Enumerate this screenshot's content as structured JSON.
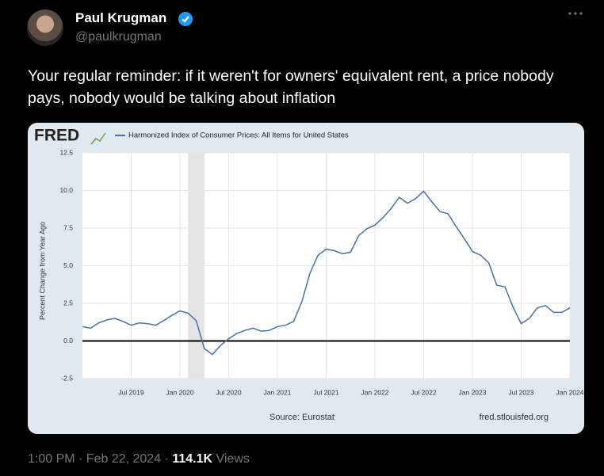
{
  "tweet": {
    "name": "Paul Krugman",
    "handle": "@paulkrugman",
    "text": "Your regular reminder: if it weren't for owners' equivalent rent, a price nobody pays, nobody would be talking about inflation",
    "timestamp": "1:00 PM · Feb 22, 2024",
    "separator": "·",
    "views_count": "114.1K",
    "views_label": "Views"
  },
  "chart_data": {
    "type": "line",
    "logo": "FRED",
    "source": "Source: Eurostat",
    "site": "fred.stlouisfed.org",
    "y_label": "Percent Change from Year Ago",
    "x": [
      "2019-01",
      "2019-02",
      "2019-03",
      "2019-04",
      "2019-05",
      "2019-06",
      "2019-07",
      "2019-08",
      "2019-09",
      "2019-10",
      "2019-11",
      "2019-12",
      "2020-01",
      "2020-02",
      "2020-03",
      "2020-04",
      "2020-05",
      "2020-06",
      "2020-07",
      "2020-08",
      "2020-09",
      "2020-10",
      "2020-11",
      "2020-12",
      "2021-01",
      "2021-02",
      "2021-03",
      "2021-04",
      "2021-05",
      "2021-06",
      "2021-07",
      "2021-08",
      "2021-09",
      "2021-10",
      "2021-11",
      "2021-12",
      "2022-01",
      "2022-02",
      "2022-03",
      "2022-04",
      "2022-05",
      "2022-06",
      "2022-07",
      "2022-08",
      "2022-09",
      "2022-10",
      "2022-11",
      "2022-12",
      "2023-01",
      "2023-02",
      "2023-03",
      "2023-04",
      "2023-05",
      "2023-06",
      "2023-07",
      "2023-08",
      "2023-09",
      "2023-10",
      "2023-11",
      "2023-12",
      "2024-01"
    ],
    "series": [
      {
        "name": "Harmonized Index of Consumer Prices: All Items for United States",
        "color": "#4572a7",
        "values": [
          0.95,
          0.85,
          1.2,
          1.4,
          1.5,
          1.3,
          1.05,
          1.2,
          1.15,
          1.05,
          1.35,
          1.7,
          2.0,
          1.85,
          1.35,
          -0.5,
          -0.9,
          -0.3,
          0.15,
          0.5,
          0.7,
          0.85,
          0.65,
          0.7,
          0.95,
          1.05,
          1.3,
          2.6,
          4.5,
          5.7,
          6.1,
          6.0,
          5.8,
          5.9,
          7.0,
          7.45,
          7.7,
          8.2,
          8.8,
          9.55,
          9.15,
          9.45,
          9.95,
          9.25,
          8.6,
          8.45,
          7.6,
          6.8,
          5.95,
          5.7,
          5.2,
          3.7,
          3.6,
          2.25,
          1.15,
          1.5,
          2.2,
          2.35,
          1.9,
          1.9,
          2.2
        ]
      }
    ],
    "xlim": [
      "2019-01",
      "2024-01"
    ],
    "xticks": [
      {
        "value": "2019-07",
        "label": "Jul 2019"
      },
      {
        "value": "2020-01",
        "label": "Jan 2020"
      },
      {
        "value": "2020-07",
        "label": "Jul 2020"
      },
      {
        "value": "2021-01",
        "label": "Jan 2021"
      },
      {
        "value": "2021-07",
        "label": "Jul 2021"
      },
      {
        "value": "2022-01",
        "label": "Jan 2022"
      },
      {
        "value": "2022-07",
        "label": "Jul 2022"
      },
      {
        "value": "2023-01",
        "label": "Jan 2023"
      },
      {
        "value": "2023-07",
        "label": "Jul 2023"
      },
      {
        "value": "2024-01",
        "label": "Jan 2024"
      }
    ],
    "ylim": [
      -2.5,
      12.5
    ],
    "yticks": [
      -2.5,
      {
        "value": 0,
        "label": "0.0"
      },
      2.5,
      {
        "value": 5,
        "label": "5.0"
      },
      7.5,
      {
        "value": 10,
        "label": "10.0"
      },
      12.5
    ],
    "grid": true,
    "zero_line": true,
    "shaded_regions": [
      {
        "start": "2020-02",
        "end": "2020-04"
      }
    ]
  }
}
